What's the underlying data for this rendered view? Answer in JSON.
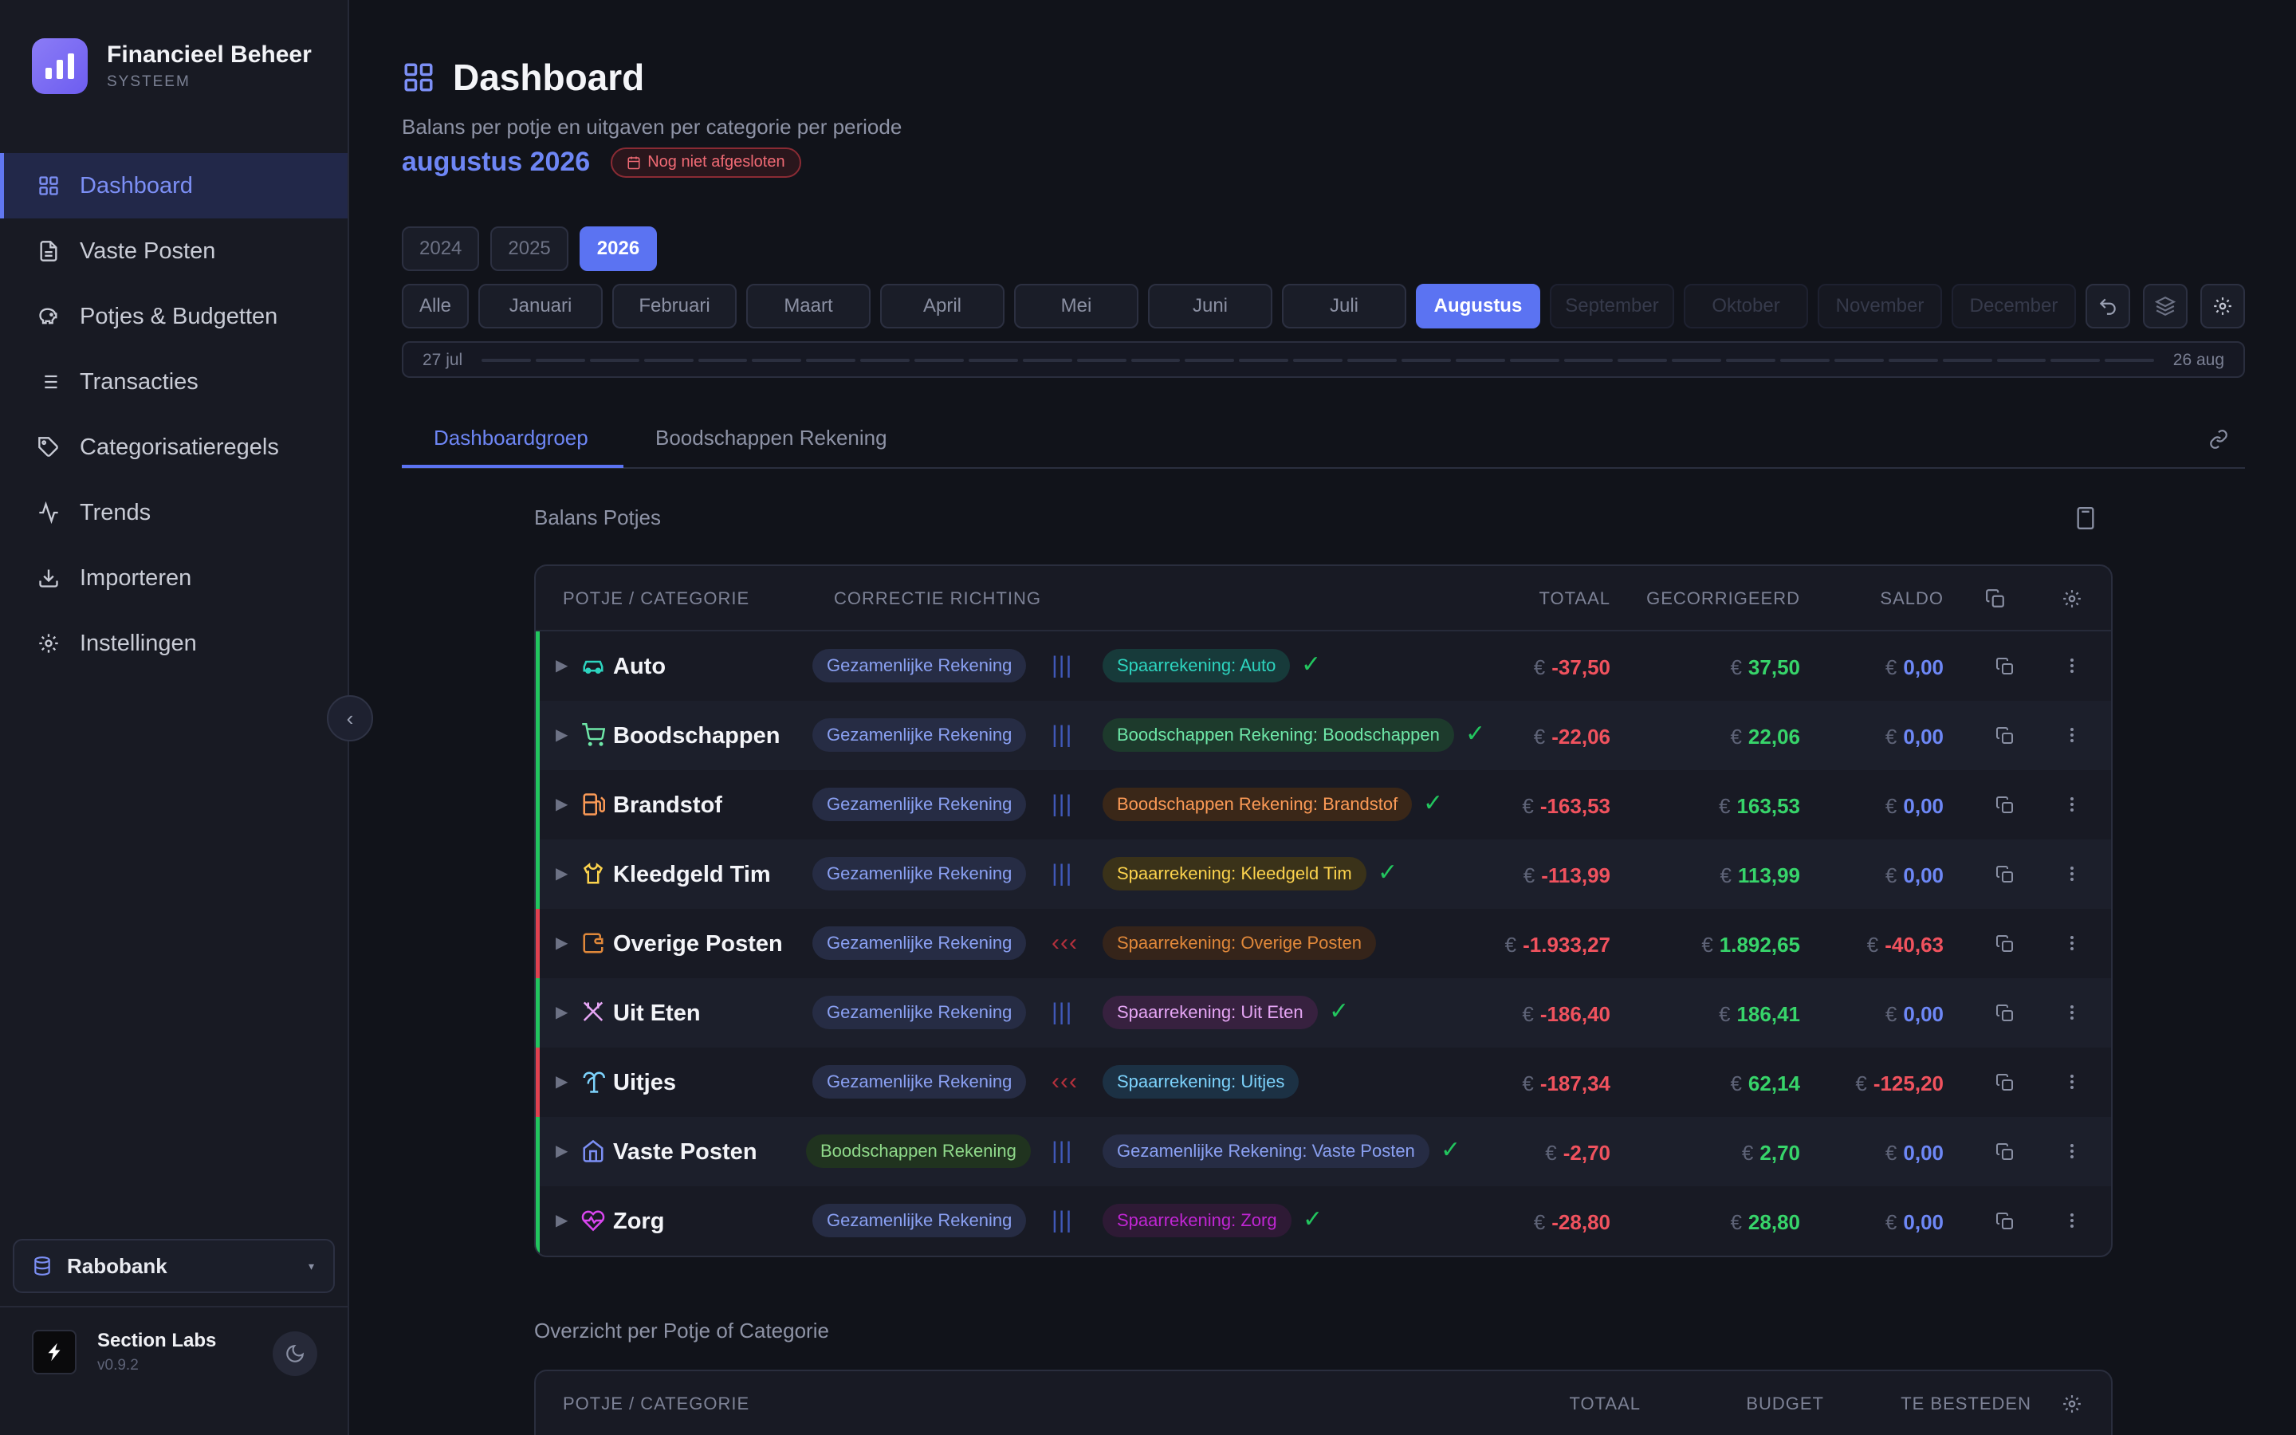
{
  "app": {
    "title": "Financieel Beheer",
    "subtitle": "SYSTEEM"
  },
  "sidebar": {
    "items": [
      {
        "label": "Dashboard",
        "icon": "grid-icon",
        "active": true
      },
      {
        "label": "Vaste Posten",
        "icon": "document-icon"
      },
      {
        "label": "Potjes & Budgetten",
        "icon": "piggy-bank-icon"
      },
      {
        "label": "Transacties",
        "icon": "list-icon"
      },
      {
        "label": "Categorisatieregels",
        "icon": "tag-icon"
      },
      {
        "label": "Trends",
        "icon": "activity-icon"
      },
      {
        "label": "Importeren",
        "icon": "download-icon"
      },
      {
        "label": "Instellingen",
        "icon": "gear-icon"
      }
    ],
    "bank": "Rabobank",
    "user": {
      "name": "Section Labs",
      "version": "v0.9.2"
    }
  },
  "header": {
    "title": "Dashboard",
    "subtitle": "Balans per potje en uitgaven per categorie per periode",
    "period": "augustus 2026",
    "status": "Nog niet afgesloten"
  },
  "years": [
    "2024",
    "2025",
    "2026"
  ],
  "active_year": "2026",
  "months": [
    "Alle",
    "Januari",
    "Februari",
    "Maart",
    "April",
    "Mei",
    "Juni",
    "Juli",
    "Augustus",
    "September",
    "Oktober",
    "November",
    "December"
  ],
  "active_month": "Augustus",
  "timeline": {
    "start": "27 jul",
    "end": "26 aug"
  },
  "tabs": [
    "Dashboardgroep",
    "Boodschappen Rekening"
  ],
  "balans": {
    "title": "Balans Potjes",
    "headers": {
      "potje": "POTJE / CATEGORIE",
      "richting": "CORRECTIE RICHTING",
      "totaal": "TOTAAL",
      "gecorrigeerd": "GECORRIGEERD",
      "saldo": "SALDO"
    },
    "currency": "€",
    "rows": [
      {
        "name": "Auto",
        "icon": "car-icon",
        "from": "Gezamenlijke Rekening",
        "to": "Spaarrekening: Auto",
        "to_color": "#2dd4bf",
        "to_bg": "#173a3a",
        "ok": true,
        "totaal": "-37,50",
        "gecorrigeerd": "37,50",
        "saldo": "0,00"
      },
      {
        "name": "Boodschappen",
        "icon": "cart-icon",
        "from": "Gezamenlijke Rekening",
        "to": "Boodschappen Rekening: Boodschappen",
        "to_color": "#6ee7a8",
        "to_bg": "#1d3a2c",
        "ok": true,
        "totaal": "-22,06",
        "gecorrigeerd": "22,06",
        "saldo": "0,00"
      },
      {
        "name": "Brandstof",
        "icon": "fuel-icon",
        "from": "Gezamenlijke Rekening",
        "to": "Boodschappen Rekening: Brandstof",
        "to_color": "#fb9a56",
        "to_bg": "#3a2718",
        "ok": true,
        "totaal": "-163,53",
        "gecorrigeerd": "163,53",
        "saldo": "0,00"
      },
      {
        "name": "Kleedgeld Tim",
        "icon": "shirt-icon",
        "from": "Gezamenlijke Rekening",
        "to": "Spaarrekening: Kleedgeld Tim",
        "to_color": "#fcd34d",
        "to_bg": "#3a3219",
        "ok": true,
        "totaal": "-113,99",
        "gecorrigeerd": "113,99",
        "saldo": "0,00"
      },
      {
        "name": "Overige Posten",
        "icon": "wallet-icon",
        "from": "Gezamenlijke Rekening",
        "to": "Spaarrekening: Overige Posten",
        "to_color": "#e0883a",
        "to_bg": "#35241a",
        "ok": false,
        "totaal": "-1.933,27",
        "gecorrigeerd": "1.892,65",
        "saldo": "-40,63"
      },
      {
        "name": "Uit Eten",
        "icon": "utensils-icon",
        "from": "Gezamenlijke Rekening",
        "to": "Spaarrekening: Uit Eten",
        "to_color": "#e6a6f5",
        "to_bg": "#37213f",
        "ok": true,
        "totaal": "-186,40",
        "gecorrigeerd": "186,41",
        "saldo": "0,00"
      },
      {
        "name": "Uitjes",
        "icon": "palm-tree-icon",
        "from": "Gezamenlijke Rekening",
        "to": "Spaarrekening: Uitjes",
        "to_color": "#7dd3fc",
        "to_bg": "#1c3144",
        "ok": false,
        "totaal": "-187,34",
        "gecorrigeerd": "62,14",
        "saldo": "-125,20"
      },
      {
        "name": "Vaste Posten",
        "icon": "home-icon",
        "from": "Boodschappen Rekening",
        "from_green": true,
        "to": "Gezamenlijke Rekening: Vaste Posten",
        "to_color": "#8aa0f2",
        "to_bg": "#262c44",
        "ok": true,
        "totaal": "-2,70",
        "gecorrigeerd": "2,70",
        "saldo": "0,00"
      },
      {
        "name": "Zorg",
        "icon": "heart-icon",
        "from": "Gezamenlijke Rekening",
        "to": "Spaarrekening: Zorg",
        "to_color": "#c026d3",
        "to_bg": "#2e1a35",
        "ok": true,
        "totaal": "-28,80",
        "gecorrigeerd": "28,80",
        "saldo": "0,00"
      }
    ]
  },
  "overzicht": {
    "title": "Overzicht per Potje of Categorie",
    "headers": {
      "potje": "POTJE / CATEGORIE",
      "totaal": "TOTAAL",
      "budget": "BUDGET",
      "te_besteden": "TE BESTEDEN"
    }
  },
  "colors": {
    "accent": "#5b73f2",
    "positive": "#37d46a",
    "negative": "#f0525e",
    "saldo": "#6d87f5"
  }
}
